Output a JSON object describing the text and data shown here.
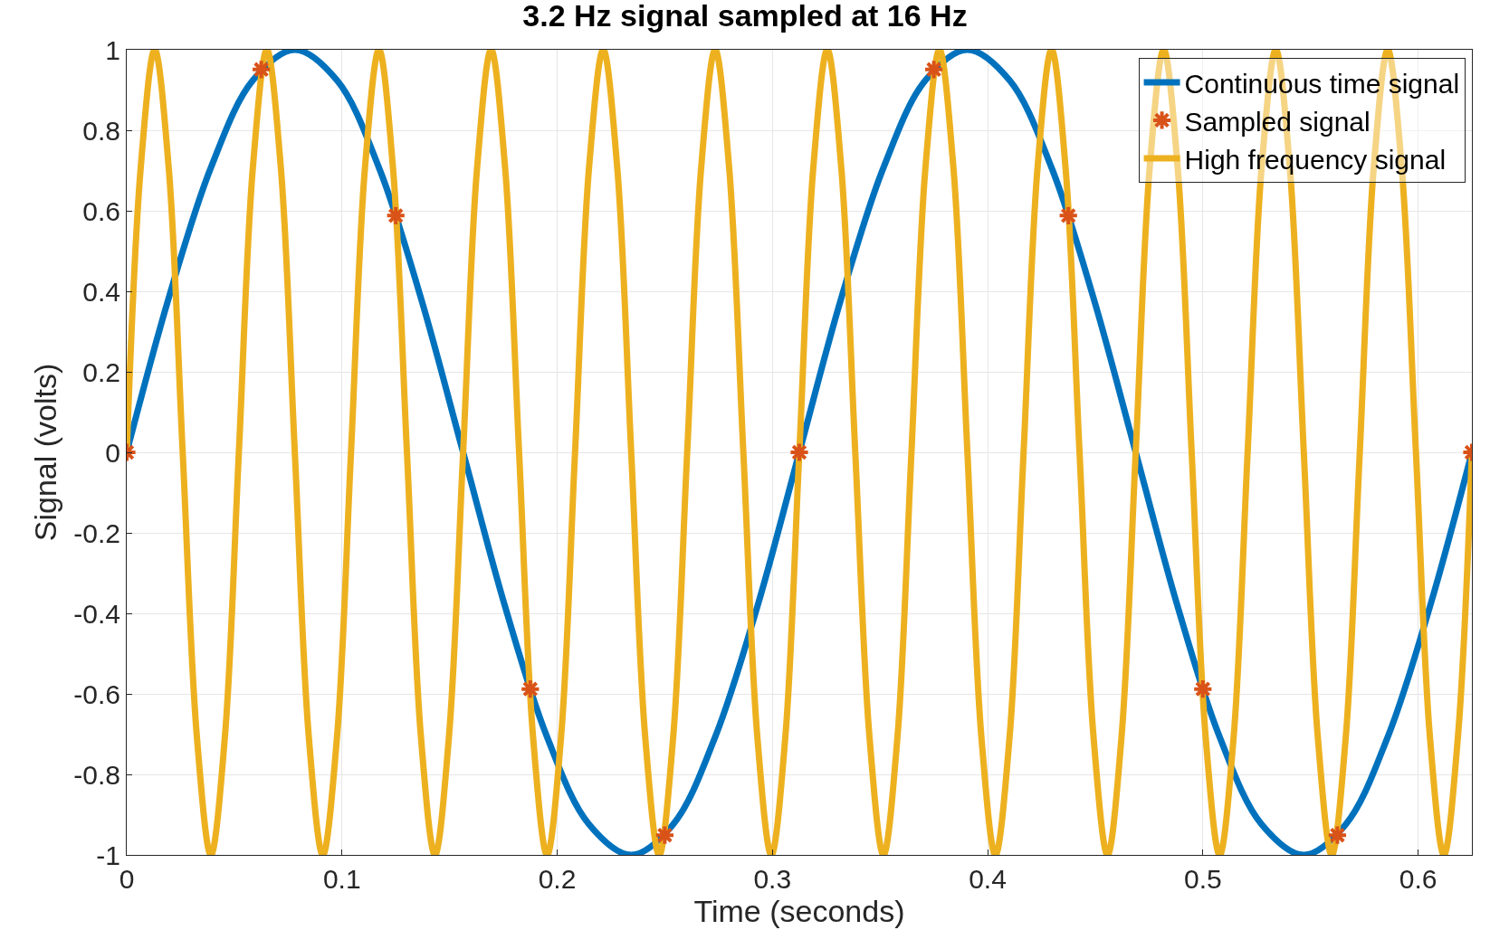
{
  "chart_data": {
    "type": "line",
    "title": "3.2 Hz signal sampled at 16 Hz",
    "xlabel": "Time (seconds)",
    "ylabel": "Signal (volts)",
    "xlim": [
      0,
      0.625
    ],
    "xticks": [
      0,
      0.1,
      0.2,
      0.3,
      0.4,
      0.5,
      0.6
    ],
    "ylim": [
      -1,
      1
    ],
    "yticks": [
      -1,
      -0.8,
      -0.6,
      -0.4,
      -0.2,
      0,
      0.2,
      0.4,
      0.6,
      0.8,
      1
    ],
    "grid": true,
    "legend": "top right",
    "series": [
      {
        "name": "Continuous time signal",
        "color": "#0072bd",
        "marker": "none",
        "line_style": "solid",
        "x": [
          0,
          0.0195,
          0.0391,
          0.0586,
          0.0781,
          0.0977,
          0.1172,
          0.1367,
          0.1563,
          0.1758,
          0.1953,
          0.2148,
          0.2344,
          0.2539,
          0.2734,
          0.293,
          0.3125,
          0.332,
          0.3516,
          0.3711,
          0.3906,
          0.4102,
          0.4297,
          0.4492,
          0.4688,
          0.4883,
          0.5078,
          0.5273,
          0.5469,
          0.5664,
          0.5859,
          0.6055,
          0.625
        ],
        "values": [
          0,
          0.383,
          0.707,
          0.924,
          1,
          0.924,
          0.707,
          0.383,
          0,
          -0.383,
          -0.707,
          -0.924,
          -1,
          -0.924,
          -0.707,
          -0.383,
          0,
          0.383,
          0.707,
          0.924,
          1,
          0.924,
          0.707,
          0.383,
          0,
          -0.383,
          -0.707,
          -0.924,
          -1,
          -0.924,
          -0.707,
          -0.383,
          0
        ]
      },
      {
        "name": "Sampled signal",
        "type": "scatter",
        "color": "#d95319",
        "marker": "cross",
        "x": [
          0,
          0.0625,
          0.125,
          0.1875,
          0.25,
          0.3125,
          0.375,
          0.4375,
          0.5,
          0.5625,
          0.625
        ],
        "values": [
          0,
          0.951,
          0.588,
          -0.588,
          -0.951,
          0,
          0.951,
          0.588,
          -0.588,
          -0.951,
          0
        ]
      },
      {
        "name": "High frequency signal",
        "color": "#edb120",
        "marker": "none",
        "line_style": "solid",
        "x": [
          0,
          0.0065,
          0.013,
          0.0195,
          0.026,
          0.0326,
          0.0391,
          0.0456,
          0.0521,
          0.0586,
          0.0651,
          0.0716,
          0.0781,
          0.0846,
          0.0911,
          0.0977,
          0.1042,
          0.1107,
          0.1172,
          0.1237,
          0.1302,
          0.1367,
          0.1432,
          0.1497,
          0.1563,
          0.1628,
          0.1693,
          0.1758,
          0.1823,
          0.1888,
          0.1953,
          0.2018,
          0.2083,
          0.2148,
          0.2214,
          0.2279,
          0.2344,
          0.2409,
          0.2474,
          0.2539,
          0.2604,
          0.2669,
          0.2734,
          0.2799,
          0.2865,
          0.293,
          0.2995,
          0.306,
          0.3125,
          0.319,
          0.3255,
          0.332,
          0.3385,
          0.3451,
          0.3516,
          0.3581,
          0.3646,
          0.3711,
          0.3776,
          0.3841,
          0.3906,
          0.3971,
          0.4036,
          0.4102,
          0.4167,
          0.4232,
          0.4297,
          0.4362,
          0.4427,
          0.4492,
          0.4557,
          0.4622,
          0.4688,
          0.4753,
          0.4818,
          0.4883,
          0.4948,
          0.5013,
          0.5078,
          0.5143,
          0.5208,
          0.5273,
          0.5339,
          0.5404,
          0.5469,
          0.5534,
          0.5599,
          0.5664,
          0.5729,
          0.5794,
          0.5859,
          0.5924,
          0.599,
          0.6055,
          0.612,
          0.6185,
          0.625
        ],
        "values": [
          0,
          0.707,
          1,
          0.707,
          0,
          -0.707,
          -1,
          -0.707,
          0,
          0.707,
          1,
          0.707,
          0,
          -0.707,
          -1,
          -0.707,
          0,
          0.707,
          1,
          0.707,
          0,
          -0.707,
          -1,
          -0.707,
          0,
          0.707,
          1,
          0.707,
          0,
          -0.707,
          -1,
          -0.707,
          0,
          0.707,
          1,
          0.707,
          0,
          -0.707,
          -1,
          -0.707,
          0,
          0.707,
          1,
          0.707,
          0,
          -0.707,
          -1,
          -0.707,
          0,
          0.707,
          1,
          0.707,
          0,
          -0.707,
          -1,
          -0.707,
          0,
          0.707,
          1,
          0.707,
          0,
          -0.707,
          -1,
          -0.707,
          0,
          0.707,
          1,
          0.707,
          0,
          -0.707,
          -1,
          -0.707,
          0,
          0.707,
          1,
          0.707,
          0,
          -0.707,
          -1,
          -0.707,
          0,
          0.707,
          1,
          0.707,
          0,
          -0.707,
          -1,
          -0.707,
          0,
          0.707,
          1,
          0.707,
          0,
          -0.707,
          -1,
          -0.707,
          0
        ]
      }
    ]
  }
}
